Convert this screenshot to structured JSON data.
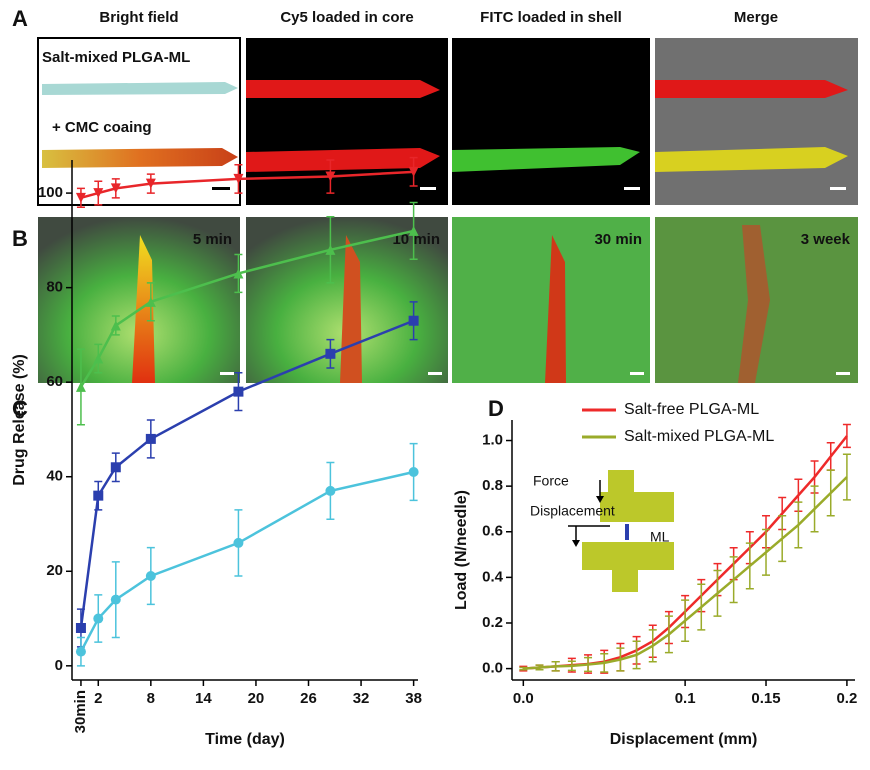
{
  "panels": {
    "A": {
      "label": "A",
      "columns": [
        "Bright field",
        "Cy5 loaded in core",
        "FITC loaded in shell",
        "Merge"
      ],
      "annotations": [
        "Salt-mixed PLGA-ML",
        "+ CMC coaing"
      ]
    },
    "B": {
      "label": "B",
      "times": [
        "5 min",
        "10 min",
        "30 min",
        "3 week"
      ]
    }
  },
  "chart_data": [
    {
      "type": "line",
      "panel_label": "C",
      "xlabel": "Time (day)",
      "ylabel": "Drug Release (%)",
      "x": [
        0.021,
        2,
        4,
        8,
        18,
        28.5,
        38
      ],
      "xlim": [
        -1,
        38.5
      ],
      "xticks": [
        {
          "value": 0.021,
          "label": "30min"
        },
        2,
        8,
        14,
        20,
        26,
        32,
        38
      ],
      "ylim": [
        -3,
        107
      ],
      "yticks": [
        0,
        20,
        40,
        60,
        80,
        100
      ],
      "series": [
        {
          "color": "#e8262a",
          "marker": "triangle-down",
          "values": [
            99,
            100,
            101,
            102,
            103,
            103.5,
            104.5
          ],
          "errors": [
            2,
            2.5,
            2,
            2,
            3,
            3.5,
            3
          ]
        },
        {
          "color": "#4dbf4d",
          "marker": "triangle-up",
          "values": [
            59,
            65,
            72,
            77,
            83,
            88,
            92
          ],
          "errors": [
            8,
            3,
            2,
            4,
            4,
            7,
            6
          ]
        },
        {
          "color": "#2b3fae",
          "marker": "square",
          "values": [
            8,
            36,
            42,
            48,
            58,
            66,
            73
          ],
          "errors": [
            4,
            3,
            3,
            4,
            4,
            3,
            4
          ]
        },
        {
          "color": "#4cc3dc",
          "marker": "circle",
          "values": [
            3,
            10,
            14,
            19,
            26,
            37,
            41
          ],
          "errors": [
            3,
            5,
            8,
            6,
            7,
            6,
            6
          ]
        }
      ]
    },
    {
      "type": "line",
      "panel_label": "D",
      "xlabel": "Displacement (mm)",
      "ylabel": "Load (N/needle)",
      "x": [
        0,
        0.01,
        0.02,
        0.03,
        0.04,
        0.05,
        0.06,
        0.07,
        0.08,
        0.09,
        0.1,
        0.11,
        0.12,
        0.13,
        0.14,
        0.15,
        0.16,
        0.17,
        0.18,
        0.19,
        0.2
      ],
      "xlim": [
        -0.007,
        0.205
      ],
      "xticks": [
        {
          "value": 0,
          "label": "0.0"
        },
        0.1,
        0.15,
        0.2
      ],
      "ylim": [
        -0.05,
        1.09
      ],
      "yticks": [
        {
          "value": 0,
          "label": "0.0"
        },
        0.2,
        0.4,
        0.6,
        0.8,
        {
          "value": 1,
          "label": "1.0"
        }
      ],
      "legend": "upper left",
      "inset": {
        "labels": [
          "Force",
          "Displacement",
          "ML"
        ]
      },
      "series": [
        {
          "name": "Salt-free PLGA-ML",
          "color": "#ee2a2a",
          "values": [
            0,
            0.005,
            0.01,
            0.015,
            0.02,
            0.03,
            0.05,
            0.08,
            0.12,
            0.18,
            0.25,
            0.32,
            0.39,
            0.46,
            0.53,
            0.6,
            0.68,
            0.76,
            0.84,
            0.93,
            1.02
          ],
          "errors": [
            0.01,
            0.01,
            0.02,
            0.03,
            0.04,
            0.05,
            0.06,
            0.06,
            0.07,
            0.07,
            0.07,
            0.07,
            0.07,
            0.07,
            0.07,
            0.07,
            0.07,
            0.07,
            0.07,
            0.06,
            0.05
          ]
        },
        {
          "name": "Salt-mixed PLGA-ML",
          "color": "#9aab2a",
          "values": [
            0,
            0.005,
            0.01,
            0.012,
            0.018,
            0.025,
            0.04,
            0.06,
            0.1,
            0.15,
            0.21,
            0.27,
            0.33,
            0.39,
            0.45,
            0.51,
            0.57,
            0.63,
            0.7,
            0.77,
            0.84
          ],
          "errors": [
            0.005,
            0.01,
            0.02,
            0.02,
            0.03,
            0.04,
            0.05,
            0.06,
            0.07,
            0.08,
            0.09,
            0.1,
            0.1,
            0.1,
            0.1,
            0.1,
            0.1,
            0.1,
            0.1,
            0.1,
            0.1
          ]
        }
      ]
    }
  ]
}
